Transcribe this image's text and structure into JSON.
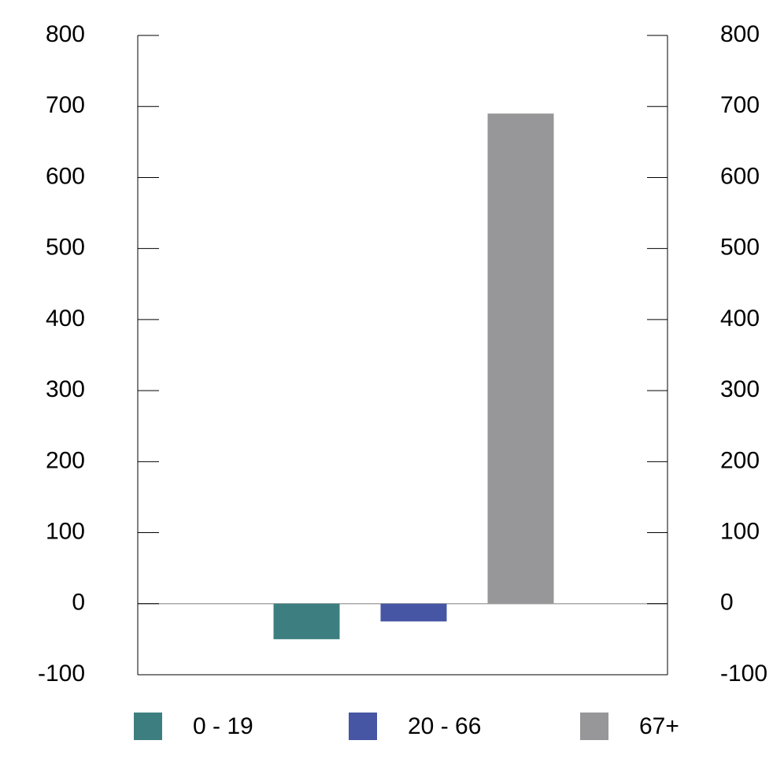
{
  "chart_data": {
    "type": "bar",
    "categories": [
      null
    ],
    "series": [
      {
        "name": "0 - 19",
        "color": "#3d7f80",
        "values": [
          -50
        ]
      },
      {
        "name": "20 - 66",
        "color": "#4656a4",
        "values": [
          -25
        ]
      },
      {
        "name": "67+",
        "color": "#979698",
        "values": [
          690
        ]
      }
    ],
    "ylim": [
      -100,
      800
    ],
    "yticks": [
      -100,
      0,
      100,
      200,
      300,
      400,
      500,
      600,
      700,
      800
    ]
  }
}
